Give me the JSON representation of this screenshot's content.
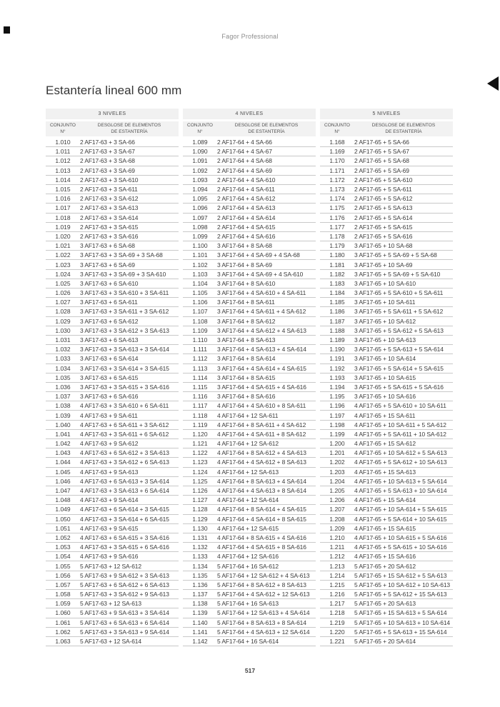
{
  "page": {
    "brand": "Fagor Professional",
    "title": "Estantería lineal 600 mm",
    "page_number": "517"
  },
  "tables": [
    {
      "level_header": "3 NIVELES",
      "conjunto_header_line1": "CONJUNTO",
      "conjunto_header_line2": "N°",
      "desglose_header_line1": "DESGLOSE DE ELEMENTOS",
      "desglose_header_line2": "DE ESTANTERÍA",
      "rows": [
        [
          "1.010",
          "2 AF17-63 + 3 SA-66"
        ],
        [
          "1.011",
          "2 AF17-63 + 3 SA-67"
        ],
        [
          "1.012",
          "2 AF17-63 + 3 SA-68"
        ],
        [
          "1.013",
          "2 AF17-63 + 3 SA-69"
        ],
        [
          "1.014",
          "2 AF17-63 + 3 SA-610"
        ],
        [
          "1.015",
          "2 AF17-63 + 3 SA-611"
        ],
        [
          "1.016",
          "2 AF17-63 + 3 SA-612"
        ],
        [
          "1.017",
          "2 AF17-63 + 3 SA-613"
        ],
        [
          "1.018",
          "2 AF17-63 + 3 SA-614"
        ],
        [
          "1.019",
          "2 AF17-63 + 3 SA-615"
        ],
        [
          "1.020",
          "2 AF17-63 + 3 SA-616"
        ],
        [
          "1.021",
          "3 AF17-63 + 6 SA-68"
        ],
        [
          "1.022",
          "3 AF17-63 + 3 SA-69 + 3 SA-68"
        ],
        [
          "1.023",
          "3 AF17-63 + 6 SA-69"
        ],
        [
          "1.024",
          "3 AF17-63 + 3 SA-69 + 3 SA-610"
        ],
        [
          "1.025",
          "3 AF17-63 + 6 SA-610"
        ],
        [
          "1.026",
          "3 AF17-63 + 3 SA-610 + 3 SA-611"
        ],
        [
          "1.027",
          "3 AF17-63 + 6 SA-611"
        ],
        [
          "1.028",
          "3 AF17-63 + 3 SA-611 + 3 SA-612"
        ],
        [
          "1.029",
          "3 AF17-63 + 6 SA-612"
        ],
        [
          "1.030",
          "3 AF17-63 + 3 SA-612 + 3 SA-613"
        ],
        [
          "1.031",
          "3 AF17-63 + 6 SA-613"
        ],
        [
          "1.032",
          "3 AF17-63 + 3 SA-613 + 3 SA-614"
        ],
        [
          "1.033",
          "3 AF17-63 + 6 SA-614"
        ],
        [
          "1.034",
          "3 AF17-63 + 3 SA-614 + 3 SA-615"
        ],
        [
          "1.035",
          "3 AF17-63 + 6 SA-615"
        ],
        [
          "1.036",
          "3 AF17-63 + 3 SA-615 + 3 SA-616"
        ],
        [
          "1.037",
          "3 AF17-63 + 6 SA-616"
        ],
        [
          "1.038",
          "4 AF17-63 + 3 SA-610 + 6 SA-611"
        ],
        [
          "1.039",
          "4 AF17-63 + 9 SA-611"
        ],
        [
          "1.040",
          "4 AF17-63 + 6 SA-611 + 3 SA-612"
        ],
        [
          "1.041",
          "4 AF17-63 + 3 SA-611 + 6 SA-612"
        ],
        [
          "1.042",
          "4 AF17-63 + 9 SA-612"
        ],
        [
          "1.043",
          "4 AF17-63 + 6 SA-612 + 3 SA-613"
        ],
        [
          "1.044",
          "4 AF17-63 + 3 SA-612 + 6 SA-613"
        ],
        [
          "1.045",
          "4 AF17-63 + 9 SA-613"
        ],
        [
          "1.046",
          "4 AF17-63 + 6 SA-613 + 3 SA-614"
        ],
        [
          "1.047",
          "4 AF17-63 + 3 SA-613 + 6 SA-614"
        ],
        [
          "1.048",
          "4 AF17-63 + 9 SA-614"
        ],
        [
          "1.049",
          "4 AF17-63 + 6 SA-614 + 3 SA-615"
        ],
        [
          "1.050",
          "4 AF17-63 + 3 SA-614 + 6 SA-615"
        ],
        [
          "1.051",
          "4 AF17-63 + 9 SA-615"
        ],
        [
          "1.052",
          "4 AF17-63 + 6 SA-615 + 3 SA-616"
        ],
        [
          "1.053",
          "4 AF17-63 + 3 SA-615 + 6 SA-616"
        ],
        [
          "1.054",
          "4 AF17-63 + 9 SA-616"
        ],
        [
          "1.055",
          "5 AF17-63 + 12 SA-612"
        ],
        [
          "1.056",
          "5 AF17-63 + 9 SA-612 + 3 SA-613"
        ],
        [
          "1.057",
          "5 AF17-63 + 6 SA-612 + 6 SA-613"
        ],
        [
          "1.058",
          "5 AF17-63 + 3 SA-612 + 9 SA-613"
        ],
        [
          "1.059",
          "5 AF17-63 + 12 SA-613"
        ],
        [
          "1.060",
          "5 AF17-63 + 9 SA-613 + 3 SA-614"
        ],
        [
          "1.061",
          "5 AF17-63 + 6 SA-613 + 6 SA-614"
        ],
        [
          "1.062",
          "5 AF17-63 + 3 SA-613 + 9 SA-614"
        ],
        [
          "1.063",
          "5 AF17-63 + 12 SA-614"
        ]
      ]
    },
    {
      "level_header": "4 NIVELES",
      "conjunto_header_line1": "CONJUNTO",
      "conjunto_header_line2": "N°",
      "desglose_header_line1": "DESGLOSE DE ELEMENTOS",
      "desglose_header_line2": "DE ESTANTERÍA",
      "rows": [
        [
          "1.089",
          "2 AF17-64 + 4 SA-66"
        ],
        [
          "1.090",
          "2 AF17-64 + 4 SA-67"
        ],
        [
          "1.091",
          "2 AF17-64 + 4 SA-68"
        ],
        [
          "1.092",
          "2 AF17-64 + 4 SA-69"
        ],
        [
          "1.093",
          "2 AF17-64 + 4 SA-610"
        ],
        [
          "1.094",
          "2 AF17-64 + 4 SA-611"
        ],
        [
          "1.095",
          "2 AF17-64 + 4 SA-612"
        ],
        [
          "1.096",
          "2 AF17-64 + 4 SA-613"
        ],
        [
          "1.097",
          "2 AF17-64 + 4 SA-614"
        ],
        [
          "1.098",
          "2 AF17-64 + 4 SA-615"
        ],
        [
          "1.099",
          "2 AF17-64 + 4 SA-616"
        ],
        [
          "1.100",
          "3 AF17-64 + 8 SA-68"
        ],
        [
          "1.101",
          "3 AF17-64 + 4 SA-69 + 4 SA-68"
        ],
        [
          "1.102",
          "3 AF17-64 + 8 SA-69"
        ],
        [
          "1.103",
          "3 AF17-64 + 4 SA-69 + 4 SA-610"
        ],
        [
          "1.104",
          "3 AF17-64 + 8 SA-610"
        ],
        [
          "1.105",
          "3 AF17-64 + 4 SA-610 + 4 SA-611"
        ],
        [
          "1.106",
          "3 AF17-64 + 8 SA-611"
        ],
        [
          "1.107",
          "3 AF17-64 + 4 SA-611 + 4 SA-612"
        ],
        [
          "1.108",
          "3 AF17-64 + 8 SA-612"
        ],
        [
          "1.109",
          "3 AF17-64 + 4 SA-612 + 4 SA-613"
        ],
        [
          "1.110",
          "3 AF17-64 + 8 SA-613"
        ],
        [
          "1.111",
          "3 AF17-64 + 4 SA-613 + 4 SA-614"
        ],
        [
          "1.112",
          "3 AF17-64 + 8 SA-614"
        ],
        [
          "1.113",
          "3 AF17-64 + 4 SA-614 + 4 SA-615"
        ],
        [
          "1.114",
          "3 AF17-64 + 8 SA-615"
        ],
        [
          "1.115",
          "3 AF17-64 + 4 SA-615 + 4 SA-616"
        ],
        [
          "1.116",
          "3 AF17-64 + 8 SA-616"
        ],
        [
          "1.117",
          "4 AF17-64 + 4 SA-610 + 8 SA-611"
        ],
        [
          "1.118",
          "4 AF17-64 + 12 SA-611"
        ],
        [
          "1.119",
          "4 AF17-64 + 8 SA-611 + 4 SA-612"
        ],
        [
          "1.120",
          "4 AF17-64 + 4 SA-611 + 8 SA-612"
        ],
        [
          "1.121",
          "4 AF17-64 + 12 SA-612"
        ],
        [
          "1.122",
          "4 AF17-64 + 8 SA-612 + 4 SA-613"
        ],
        [
          "1.123",
          "4 AF17-64 + 4 SA-612 + 8 SA-613"
        ],
        [
          "1.124",
          "4 AF17-64 + 12 SA-613"
        ],
        [
          "1.125",
          "4 AF17-64 + 8 SA-613 + 4 SA-614"
        ],
        [
          "1.126",
          "4 AF17-64 + 4 SA-613 + 8 SA-614"
        ],
        [
          "1.127",
          "4 AF17-64 + 12 SA-614"
        ],
        [
          "1.128",
          "4 AF17-64 + 8 SA-614 + 4 SA-615"
        ],
        [
          "1.129",
          "4 AF17-64 + 4 SA-614 + 8 SA-615"
        ],
        [
          "1.130",
          "4 AF17-64 + 12 SA-615"
        ],
        [
          "1.131",
          "4 AF17-64 + 8 SA-615 + 4 SA-616"
        ],
        [
          "1.132",
          "4 AF17-64 + 4 SA-615 + 8 SA-616"
        ],
        [
          "1.133",
          "4 AF17-64 + 12 SA-616"
        ],
        [
          "1.134",
          "5 AF17-64 + 16 SA-612"
        ],
        [
          "1.135",
          "5 AF17-64 + 12 SA-612 + 4 SA-613"
        ],
        [
          "1.136",
          "5 AF17-64 + 8 SA-612 + 8 SA-613"
        ],
        [
          "1.137",
          "5 AF17-64 + 4 SA-612 + 12 SA-613"
        ],
        [
          "1.138",
          "5 AF17-64 + 16 SA-613"
        ],
        [
          "1.139",
          "5 AF17-64 + 12 SA-613 + 4 SA-614"
        ],
        [
          "1.140",
          "5 AF17-64 + 8 SA-613 + 8 SA-614"
        ],
        [
          "1.141",
          "5 AF17-64 + 4 SA-613 + 12 SA-614"
        ],
        [
          "1.142",
          "5 AF17-64 + 16 SA-614"
        ]
      ]
    },
    {
      "level_header": "5 NIVELES",
      "conjunto_header_line1": "CONJUNTO",
      "conjunto_header_line2": "N°",
      "desglose_header_line1": "DESGLOSE DE ELEMENTOS",
      "desglose_header_line2": "DE ESTANTERÍA",
      "rows": [
        [
          "1.168",
          "2 AF17-65 + 5 SA-66"
        ],
        [
          "1.169",
          "2 AF17-65 + 5 SA-67"
        ],
        [
          "1.170",
          "2 AF17-65 + 5 SA-68"
        ],
        [
          "1.171",
          "2 AF17-65 + 5 SA-69"
        ],
        [
          "1.172",
          "2 AF17-65 + 5 SA-610"
        ],
        [
          "1.173",
          "2 AF17-65 + 5 SA-611"
        ],
        [
          "1.174",
          "2 AF17-65 + 5 SA-612"
        ],
        [
          "1.175",
          "2 AF17-65 + 5 SA-613"
        ],
        [
          "1.176",
          "2 AF17-65 + 5 SA-614"
        ],
        [
          "1.177",
          "2 AF17-65 + 5 SA-615"
        ],
        [
          "1.178",
          "2 AF17-65 + 5 SA-616"
        ],
        [
          "1.179",
          "3 AF17-65 + 10 SA-68"
        ],
        [
          "1.180",
          "3 AF17-65 + 5 SA-69 + 5 SA-68"
        ],
        [
          "1.181",
          "3 AF17-65 + 10 SA-69"
        ],
        [
          "1.182",
          "3 AF17-65 + 5 SA-69 + 5 SA-610"
        ],
        [
          "1.183",
          "3 AF17-65 + 10 SA-610"
        ],
        [
          "1.184",
          "3 AF17-65 + 5 SA-610 + 5 SA-611"
        ],
        [
          "1.185",
          "3 AF17-65 + 10 SA-611"
        ],
        [
          "1.186",
          "3 AF17-65 + 5 SA-611 + 5 SA-612"
        ],
        [
          "1.187",
          "3 AF17-65 + 10 SA-612"
        ],
        [
          "1.188",
          "3 AF17-65 + 5 SA-612 + 5 SA-613"
        ],
        [
          "1.189",
          "3 AF17-65 + 10 SA-613"
        ],
        [
          "1.190",
          "3 AF17-65 + 5 SA-613 + 5 SA-614"
        ],
        [
          "1.191",
          "3 AF17-65 + 10 SA-614"
        ],
        [
          "1.192",
          "3 AF17-65 + 5 SA-614 + 5 SA-615"
        ],
        [
          "1.193",
          "3 AF17-65 + 10 SA-615"
        ],
        [
          "1.194",
          "3 AF17-65 + 5 SA-615 + 5 SA-616"
        ],
        [
          "1.195",
          "3 AF17-65 + 10 SA-616"
        ],
        [
          "1.196",
          "4 AF17-65 + 5 SA-610 + 10 SA-611"
        ],
        [
          "1.197",
          "4 AF17-65 + 15 SA-611"
        ],
        [
          "1.198",
          "4 AF17-65 + 10 SA-611 + 5 SA-612"
        ],
        [
          "1.199",
          "4 AF17-65 + 5 SA-611 + 10 SA-612"
        ],
        [
          "1.200",
          "4 AF17-65 + 15 SA-612"
        ],
        [
          "1.201",
          "4 AF17-65 + 10 SA-612 + 5 SA-613"
        ],
        [
          "1.202",
          "4 AF17-65 + 5 SA-612 + 10 SA-613"
        ],
        [
          "1.203",
          "4 AF17-65 + 15 SA-613"
        ],
        [
          "1.204",
          "4 AF17-65 + 10 SA-613 + 5 SA-614"
        ],
        [
          "1.205",
          "4 AF17-65 + 5 SA-613 + 10 SA-614"
        ],
        [
          "1.206",
          "4 AF17-65 + 15 SA-614"
        ],
        [
          "1.207",
          "4 AF17-65 + 10 SA-614 + 5 SA-615"
        ],
        [
          "1.208",
          "4 AF17-65 + 5 SA-614 + 10 SA-615"
        ],
        [
          "1.209",
          "4 AF17-65 + 15 SA-615"
        ],
        [
          "1.210",
          "4 AF17-65 + 10 SA-615 + 5 SA-616"
        ],
        [
          "1.211",
          "4 AF17-65 + 5 SA-615 + 10 SA-616"
        ],
        [
          "1.212",
          "4 AF17-65 + 15 SA-616"
        ],
        [
          "1.213",
          "5 AF17-65 + 20 SA-612"
        ],
        [
          "1.214",
          "5 AF17-65 + 15 SA-612 + 5 SA-613"
        ],
        [
          "1.215",
          "5 AF17-65 + 10 SA-612 + 10 SA-613"
        ],
        [
          "1.216",
          "5 AF17-65 + 5 SA-612 + 15 SA-613"
        ],
        [
          "1.217",
          "5 AF17-65 + 20 SA-613"
        ],
        [
          "1.218",
          "5 AF17-65 + 15 SA-613 + 5 SA-614"
        ],
        [
          "1.219",
          "5 AF17-65 + 10 SA-613 + 10 SA-614"
        ],
        [
          "1.220",
          "5 AF17-65 + 5 SA-613 + 15 SA-614"
        ],
        [
          "1.221",
          "5 AF17-65 + 20 SA-614"
        ]
      ]
    }
  ]
}
